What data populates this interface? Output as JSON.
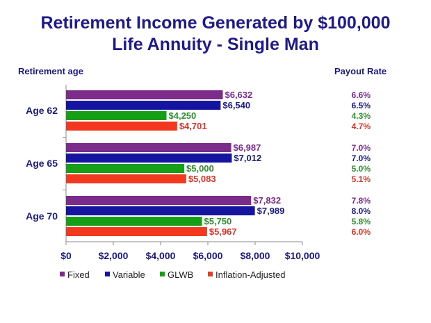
{
  "chart_data": {
    "type": "bar",
    "orientation": "horizontal",
    "title_line1": "Retirement Income Generated by $100,000",
    "title_line2": "Life Annuity - Single Man",
    "ylabel": "Retirement age",
    "side_header": "Payout Rate",
    "categories": [
      "Age 62",
      "Age 65",
      "Age 70"
    ],
    "series": [
      {
        "name": "Fixed",
        "color": "#7b2c8a",
        "label_color": "#7b2c8a",
        "values": [
          6632,
          6987,
          7832
        ],
        "labels": [
          "$6,632",
          "$6,987",
          "$7,832"
        ],
        "payout": [
          "6.6%",
          "7.0%",
          "7.8%"
        ]
      },
      {
        "name": "Variable",
        "color": "#1414a0",
        "label_color": "#1a1a80",
        "values": [
          6540,
          7012,
          7989
        ],
        "labels": [
          "$6,540",
          "$7,012",
          "$7,989"
        ],
        "payout": [
          "6.5%",
          "7.0%",
          "8.0%"
        ]
      },
      {
        "name": "GLWB",
        "color": "#169e16",
        "label_color": "#2f8f2f",
        "values": [
          4250,
          5000,
          5750
        ],
        "labels": [
          "$4,250",
          "$5,000",
          "$5,750"
        ],
        "payout": [
          "4.3%",
          "5.0%",
          "5.8%"
        ]
      },
      {
        "name": "Inflation-Adjusted",
        "color": "#f2381f",
        "label_color": "#d9362a",
        "values": [
          4701,
          5083,
          5967
        ],
        "labels": [
          "$4,701",
          "$5,083",
          "$5,967"
        ],
        "payout": [
          "4.7%",
          "5.1%",
          "6.0%"
        ]
      }
    ],
    "xlim": [
      0,
      10000
    ],
    "xticks": [
      0,
      2000,
      4000,
      6000,
      8000,
      10000
    ],
    "xtick_labels": [
      "$0",
      "$2,000",
      "$4,000",
      "$6,000",
      "$8,000",
      "$10,000"
    ],
    "grid": false,
    "legend_position": "bottom"
  }
}
